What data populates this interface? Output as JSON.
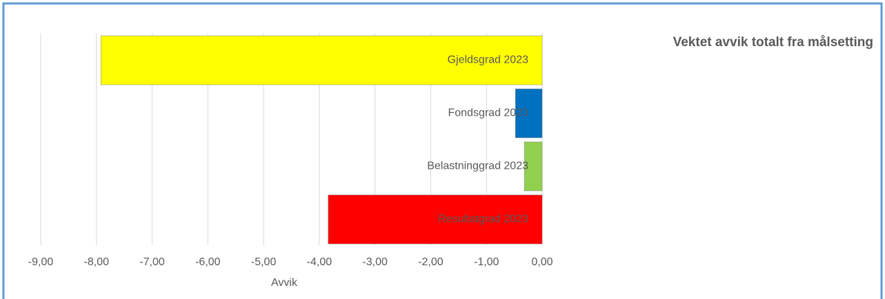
{
  "chart_data": {
    "type": "barh",
    "title": "Vektet avvik totalt fra målsetting",
    "xlabel": "Avvik",
    "categories": [
      "Gjeldsgrad 2023",
      "Fondsgrad 2023",
      "Belastninggrad 2023",
      "Resultatgrad 2023"
    ],
    "values": [
      -7.92,
      -0.48,
      -0.32,
      -3.84
    ],
    "colors": [
      "#ffff00",
      "#0070c0",
      "#92d050",
      "#ff0000"
    ],
    "xlim": [
      -9,
      0
    ],
    "xticks": [
      {
        "value": -9,
        "label": "-9,00"
      },
      {
        "value": -8,
        "label": "-8,00"
      },
      {
        "value": -7,
        "label": "-7,00"
      },
      {
        "value": -6,
        "label": "-6,00"
      },
      {
        "value": -5,
        "label": "-5,00"
      },
      {
        "value": -4,
        "label": "-4,00"
      },
      {
        "value": -3,
        "label": "-3,00"
      },
      {
        "value": -2,
        "label": "-2,00"
      },
      {
        "value": -1,
        "label": "-1,00"
      },
      {
        "value": 0,
        "label": "0,00"
      }
    ],
    "grid": true
  }
}
